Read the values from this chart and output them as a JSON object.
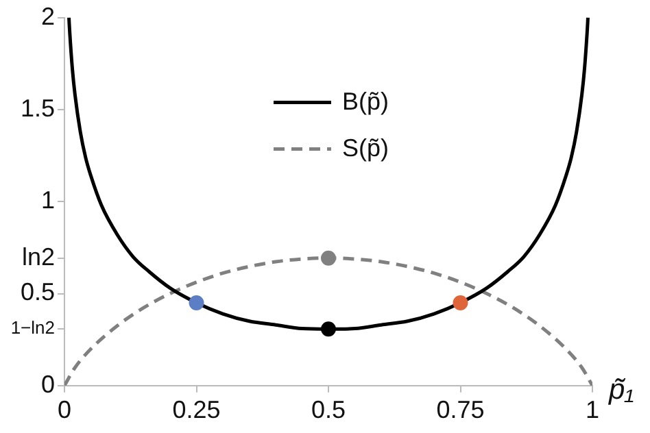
{
  "chart_data": {
    "type": "line",
    "xlabel": "p̃₁",
    "xlim": [
      0,
      1
    ],
    "xticks": [
      0,
      0.25,
      0.5,
      0.75,
      1
    ],
    "ylim": [
      0,
      2
    ],
    "yticks": [
      0,
      {
        "value": 0.307,
        "label": "1−ln2"
      },
      0.5,
      {
        "value": 0.693,
        "label": "ln2"
      },
      1,
      1.5,
      2
    ],
    "grid": false,
    "legend": "top",
    "line_style": "solid",
    "marker": "none",
    "series": [
      {
        "name": "B(p̃)",
        "color": "#000000",
        "x": [
          0.0085,
          0.009,
          0.01,
          0.015,
          0.02,
          0.03,
          0.04,
          0.05,
          0.07,
          0.1,
          0.13,
          0.16,
          0.2,
          0.25,
          0.3,
          0.35,
          0.4,
          0.45,
          0.5,
          0.55,
          0.6,
          0.65,
          0.7,
          0.75,
          0.8,
          0.84,
          0.87,
          0.9,
          0.93,
          0.95,
          0.96,
          0.97,
          0.98,
          0.985,
          0.99,
          0.991,
          0.9915
        ],
        "values": [
          2.0,
          1.97,
          1.92,
          1.72,
          1.58,
          1.38,
          1.24,
          1.14,
          0.98,
          0.82,
          0.7,
          0.62,
          0.53,
          0.45,
          0.39,
          0.35,
          0.33,
          0.31,
          0.307,
          0.31,
          0.33,
          0.35,
          0.39,
          0.45,
          0.53,
          0.62,
          0.7,
          0.82,
          0.98,
          1.14,
          1.24,
          1.38,
          1.58,
          1.72,
          1.92,
          1.97,
          2.0
        ]
      },
      {
        "name": "S(p̃)",
        "color": "#808080",
        "line_style": "dashed",
        "x": [
          0,
          0.02,
          0.05,
          0.1,
          0.15,
          0.2,
          0.25,
          0.3,
          0.35,
          0.4,
          0.45,
          0.5,
          0.55,
          0.6,
          0.65,
          0.7,
          0.75,
          0.8,
          0.85,
          0.9,
          0.95,
          0.98,
          1
        ],
        "values": [
          0,
          0.098,
          0.199,
          0.325,
          0.423,
          0.5,
          0.562,
          0.611,
          0.647,
          0.673,
          0.688,
          0.693,
          0.688,
          0.673,
          0.647,
          0.611,
          0.562,
          0.5,
          0.423,
          0.325,
          0.199,
          0.098,
          0
        ]
      },
      {
        "type": "scatter",
        "marker": "circle",
        "x": [
          0.25,
          0.5,
          0.5,
          0.75
        ],
        "values": [
          0.45,
          0.693,
          0.307,
          0.45
        ],
        "colors": [
          "#5b7ec4",
          "#808080",
          "#000000",
          "#e0643a"
        ]
      }
    ]
  }
}
